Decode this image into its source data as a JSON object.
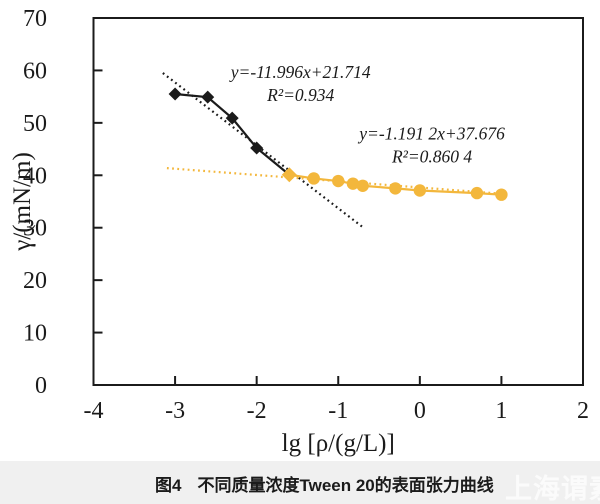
{
  "chart_data": {
    "type": "line",
    "title": "",
    "xlabel": "lg [ρ/(g/L)]",
    "ylabel": "γ/(mN/m)",
    "xlim": [
      -4,
      2
    ],
    "ylim": [
      0,
      70
    ],
    "xticks": [
      -4,
      -3,
      -2,
      -1,
      0,
      1,
      2
    ],
    "yticks": [
      0,
      10,
      20,
      30,
      40,
      50,
      60,
      70
    ],
    "grid": false,
    "legend": "none",
    "axis_color": "#1b1b1b",
    "series": [
      {
        "name": "black-diamond",
        "color": "#1b1b1b",
        "marker": "diamond",
        "marker_size": 6.5,
        "points": [
          [
            -3.0,
            55.5
          ],
          [
            -2.6,
            54.9
          ],
          [
            -2.3,
            50.9
          ],
          [
            -2.0,
            45.2
          ],
          [
            -1.6,
            40.1
          ]
        ]
      },
      {
        "name": "gold-circle",
        "color": "#F3B73C",
        "marker": "circle",
        "marker_size": 6.2,
        "first_marker": "diamond",
        "first_marker_size": 7.5,
        "points": [
          [
            -1.6,
            40.1
          ],
          [
            -1.3,
            39.4
          ],
          [
            -1.0,
            38.9
          ],
          [
            -0.82,
            38.4
          ],
          [
            -0.7,
            38.0
          ],
          [
            -0.3,
            37.5
          ],
          [
            0.0,
            37.1
          ],
          [
            0.7,
            36.6
          ],
          [
            1.0,
            36.3
          ]
        ]
      }
    ],
    "trendlines": [
      {
        "name": "black-fit",
        "color": "#1b1b1b",
        "slope": -11.996,
        "intercept": 21.714,
        "x_range": [
          -3.15,
          -0.7
        ]
      },
      {
        "name": "gold-fit",
        "color": "#F3B73C",
        "slope": -1.1912,
        "intercept": 37.676,
        "x_range": [
          -3.1,
          1.08
        ]
      }
    ],
    "annotations": [
      {
        "name": "black-fit-equation",
        "x": -1.46,
        "y": 58.6,
        "lines": [
          "y=-11.996x+21.714",
          "R²=0.934"
        ]
      },
      {
        "name": "gold-fit-equation",
        "x": 0.15,
        "y": 46.8,
        "lines": [
          "y=-1.191 2x+37.676",
          "R²=0.860 4"
        ]
      }
    ]
  },
  "caption": {
    "figure_label": "图4",
    "text": "不同质量浓度Tween 20的表面张力曲线",
    "watermark": "上海谓素"
  }
}
